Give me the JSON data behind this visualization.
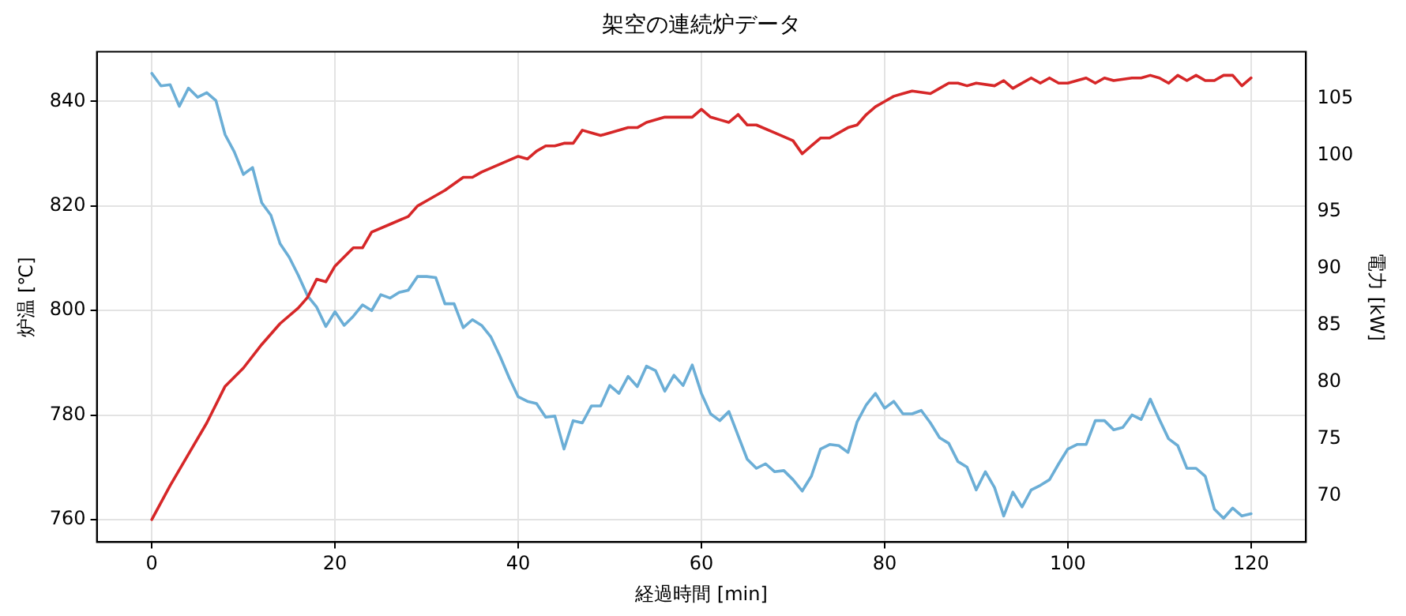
{
  "chart_data": {
    "type": "line",
    "title": "架空の連続炉データ",
    "xlabel": "経過時間 [min]",
    "ylabel": "炉温 [℃]",
    "y2label": "電力 [kW]",
    "x": [
      0,
      1,
      2,
      3,
      4,
      5,
      6,
      7,
      8,
      9,
      10,
      11,
      12,
      13,
      14,
      15,
      16,
      17,
      18,
      19,
      20,
      21,
      22,
      23,
      24,
      25,
      26,
      27,
      28,
      29,
      30,
      31,
      32,
      33,
      34,
      35,
      36,
      37,
      38,
      39,
      40,
      41,
      42,
      43,
      44,
      45,
      46,
      47,
      48,
      49,
      50,
      51,
      52,
      53,
      54,
      55,
      56,
      57,
      58,
      59,
      60,
      61,
      62,
      63,
      64,
      65,
      66,
      67,
      68,
      69,
      70,
      71,
      72,
      73,
      74,
      75,
      76,
      77,
      78,
      79,
      80,
      81,
      82,
      83,
      84,
      85,
      86,
      87,
      88,
      89,
      90,
      91,
      92,
      93,
      94,
      95,
      96,
      97,
      98,
      99,
      100,
      101,
      102,
      103,
      104,
      105,
      106,
      107,
      108,
      109,
      110,
      111,
      112,
      113,
      114,
      115,
      116,
      117,
      118,
      119,
      120
    ],
    "xlim": [
      -6,
      126
    ],
    "xticks": [
      0,
      20,
      40,
      60,
      80,
      100,
      120
    ],
    "ylim": [
      755.7,
      849.5
    ],
    "yticks": [
      760,
      780,
      800,
      820,
      840
    ],
    "y2lim": [
      65.9,
      109.1
    ],
    "y2ticks": [
      70,
      75,
      80,
      85,
      90,
      95,
      100,
      105
    ],
    "grid": true,
    "series": [
      {
        "color": "#d62728",
        "x": [
          0,
          2,
          4,
          6,
          8,
          10,
          12,
          14,
          16,
          17,
          18,
          19,
          20,
          22,
          23,
          24,
          26,
          28,
          29,
          30,
          32,
          34,
          35,
          36,
          38,
          40,
          41,
          42,
          43,
          44,
          45,
          46,
          47,
          48,
          49,
          50,
          52,
          53,
          54,
          56,
          57,
          58,
          59,
          60,
          61,
          62,
          63,
          64,
          65,
          66,
          68,
          70,
          71,
          72,
          73,
          74,
          76,
          77,
          78,
          79,
          80,
          81,
          82,
          83,
          85,
          86,
          87,
          88,
          89,
          90,
          92,
          93,
          94,
          96,
          97,
          98,
          99,
          100,
          101,
          102,
          103,
          104,
          105,
          107,
          108,
          109,
          110,
          111,
          112,
          113,
          114,
          115,
          116,
          117,
          118,
          119,
          120
        ],
        "values": [
          760,
          766.5,
          772.5,
          778.5,
          785.5,
          789,
          793.5,
          797.5,
          800.5,
          802.5,
          806,
          805.5,
          808.5,
          812,
          812,
          815,
          816.5,
          818,
          820,
          821,
          823,
          825.5,
          825.5,
          826.5,
          828,
          829.5,
          829,
          830.5,
          831.5,
          831.5,
          832,
          832,
          834.5,
          834,
          833.5,
          834,
          835,
          835,
          836,
          837,
          837,
          837,
          837,
          838.5,
          837,
          836.5,
          836,
          837.5,
          835.5,
          835.5,
          834,
          832.5,
          830,
          831.5,
          833,
          833,
          835,
          835.5,
          837.5,
          839,
          840,
          841,
          841.5,
          842,
          841.5,
          842.5,
          843.5,
          843.5,
          843,
          843.5,
          843,
          844,
          842.5,
          844.5,
          843.5,
          844.5,
          843.5,
          843.5,
          844,
          844.5,
          843.5,
          844.5,
          844,
          844.5,
          844.5,
          845,
          844.5,
          843.5,
          845,
          844,
          845,
          844,
          844,
          845,
          845,
          843,
          844.5
        ]
      },
      {
        "color": "#6baed6",
        "axis": "y2",
        "values": [
          107.2,
          106.1,
          106.2,
          104.3,
          105.9,
          105.1,
          105.5,
          104.8,
          101.8,
          100.3,
          98.3,
          98.9,
          95.8,
          94.7,
          92.2,
          91,
          89.4,
          87.6,
          86.6,
          84.9,
          86.2,
          85,
          85.8,
          86.8,
          86.3,
          87.7,
          87.4,
          87.9,
          88.1,
          89.3,
          89.3,
          89.2,
          86.9,
          86.9,
          84.8,
          85.5,
          85,
          84,
          82.3,
          80.4,
          78.7,
          78.3,
          78.1,
          76.9,
          77,
          74.1,
          76.6,
          76.4,
          77.9,
          77.9,
          79.7,
          79,
          80.5,
          79.6,
          81.4,
          81,
          79.2,
          80.6,
          79.7,
          81.5,
          79,
          77.2,
          76.6,
          77.4,
          75.3,
          73.2,
          72.4,
          72.8,
          72.1,
          72.2,
          71.4,
          70.4,
          71.7,
          74.1,
          74.5,
          74.4,
          73.8,
          76.5,
          78,
          79,
          77.7,
          78.3,
          77.2,
          77.2,
          77.5,
          76.4,
          75.1,
          74.6,
          73,
          72.5,
          70.5,
          72.1,
          70.7,
          68.2,
          70.3,
          69,
          70.5,
          70.9,
          71.4,
          72.8,
          74.1,
          74.5,
          74.5,
          76.6,
          76.6,
          75.8,
          76,
          77.1,
          76.7,
          78.5,
          76.7,
          75,
          74.4,
          72.4,
          72.4,
          71.7,
          68.8,
          68,
          68.9,
          68.2,
          68.4
        ]
      }
    ]
  }
}
